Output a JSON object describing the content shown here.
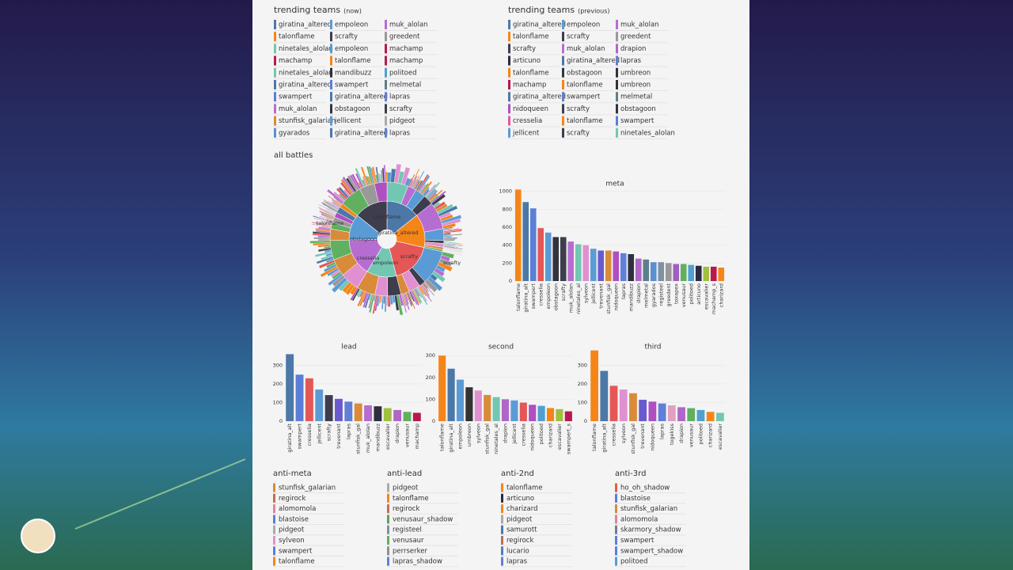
{
  "trending_now": {
    "title": "trending teams",
    "note": "(now)",
    "columns": [
      [
        "giratina_altered",
        "talonflame",
        "ninetales_alolan",
        "machamp",
        "ninetales_alolan",
        "giratina_altered",
        "swampert",
        "muk_alolan",
        "stunfisk_galarian",
        "gyarados"
      ],
      [
        "empoleon",
        "scrafty",
        "empoleon",
        "talonflame",
        "mandibuzz",
        "swampert",
        "giratina_altered",
        "obstagoon",
        "jellicent",
        "giratina_altered"
      ],
      [
        "muk_alolan",
        "greedent",
        "machamp",
        "machamp",
        "politoed",
        "melmetal",
        "lapras",
        "scrafty",
        "pidgeot",
        "lapras"
      ]
    ]
  },
  "trending_previous": {
    "title": "trending teams",
    "note": "(previous)",
    "columns": [
      [
        "giratina_altered",
        "talonflame",
        "scrafty",
        "articuno",
        "talonflame",
        "machamp",
        "giratina_altered",
        "nidoqueen",
        "cresselia",
        "jellicent"
      ],
      [
        "empoleon",
        "scrafty",
        "muk_alolan",
        "giratina_altered",
        "obstagoon",
        "talonflame",
        "swampert",
        "scrafty",
        "talonflame",
        "scrafty"
      ],
      [
        "muk_alolan",
        "greedent",
        "drapion",
        "lapras",
        "umbreon",
        "umbreon",
        "melmetal",
        "obstagoon",
        "swampert",
        "ninetales_alolan"
      ]
    ]
  },
  "colors": {
    "giratina_altered": "#4c78a8",
    "talonflame": "#f58518",
    "ninetales_alolan": "#72c7b2",
    "machamp": "#b8184f",
    "swampert": "#5b7fd6",
    "muk_alolan": "#b66dd1",
    "stunfisk_galarian": "#d98b3a",
    "gyarados": "#5a8fd0",
    "empoleon": "#5b9bd5",
    "scrafty": "#3d3d4d",
    "mandibuzz": "#2f2f3f",
    "obstagoon": "#333340",
    "jellicent": "#5b9bd5",
    "greedent": "#999999",
    "politoed": "#4fa0d0",
    "melmetal": "#607d8b",
    "lapras": "#6080d8",
    "pidgeot": "#aaaaaa",
    "articuno": "#2a2a40",
    "nidoqueen": "#b04fc0",
    "cresselia": "#e45a9a",
    "drapion": "#b066c8",
    "umbreon": "#333333",
    "regirock": "#c07050",
    "alomomola": "#e080a0",
    "blastoise": "#5b7fd6",
    "sylveon": "#e090d0",
    "venusaur_shadow": "#60a060",
    "registeel": "#8090a0",
    "venusaur": "#60b060",
    "perrserker": "#909090",
    "lapras_shadow": "#6080d8",
    "charizard": "#f58518",
    "samurott": "#4c78a8",
    "lucario": "#5080c0",
    "ho_oh_shadow": "#e06040",
    "skarmory_shadow": "#708090",
    "swampert_shadow": "#5b7fd6"
  },
  "all_battles_title": "all battles",
  "sunburst": {
    "inner_labels": [
      "obstagoon",
      "talonflame",
      "giratina_altered",
      "empoleon",
      "scrafty",
      "cresselia"
    ],
    "outer_labels": [
      "talonflame",
      "scrafty"
    ]
  },
  "charts": [
    {
      "type": "bar",
      "title": "meta",
      "categories": [
        "talonflame",
        "giratina_alt",
        "swampert",
        "cresselia",
        "empoleon",
        "obstagoon",
        "scrafty",
        "muk_alolan",
        "ninetales_al",
        "sylveon",
        "jellicent",
        "trevenant",
        "stunfisk_gal",
        "nidoqueen",
        "lapras",
        "mandibuzz",
        "drapion",
        "melmetal",
        "gyarados",
        "registeel",
        "greedent",
        "toxapex",
        "venusaur",
        "politoed",
        "articuno",
        "escavalier",
        "machamp_s",
        "charizard"
      ],
      "values": [
        1020,
        880,
        810,
        590,
        540,
        490,
        490,
        440,
        410,
        400,
        360,
        340,
        340,
        330,
        310,
        300,
        250,
        240,
        210,
        210,
        200,
        190,
        190,
        180,
        170,
        160,
        160,
        150
      ],
      "colors": [
        "#f58518",
        "#4c78a8",
        "#5b7fd6",
        "#e45756",
        "#5b9bd5",
        "#333340",
        "#3d3d4d",
        "#b66dd1",
        "#72c7b2",
        "#e090d0",
        "#5b9bd5",
        "#6a5acd",
        "#d98b3a",
        "#b04fc0",
        "#6080d8",
        "#2f2f3f",
        "#b066c8",
        "#607d8b",
        "#5a8fd0",
        "#8090a0",
        "#999999",
        "#a060c0",
        "#60b060",
        "#4fa0d0",
        "#2a2a40",
        "#a0c040",
        "#b8184f",
        "#f58518"
      ],
      "ylim": [
        0,
        1050
      ],
      "yticks": [
        0,
        200,
        400,
        600,
        800,
        1000
      ]
    },
    {
      "type": "bar",
      "title": "lead",
      "categories": [
        "giratina_alt",
        "swampert",
        "cresselia",
        "jellicent",
        "scrafty",
        "trevenant",
        "lapras",
        "stunfisk_gal",
        "muk_alolan",
        "mandibuzz",
        "escavalier",
        "drapion",
        "venusaur",
        "machamp"
      ],
      "values": [
        360,
        250,
        230,
        170,
        140,
        120,
        105,
        95,
        85,
        80,
        70,
        60,
        50,
        45
      ],
      "colors": [
        "#4c78a8",
        "#5b7fd6",
        "#e45756",
        "#5b9bd5",
        "#3d3d4d",
        "#6a5acd",
        "#6080d8",
        "#d98b3a",
        "#b66dd1",
        "#2f2f3f",
        "#a0c040",
        "#b066c8",
        "#60b060",
        "#b8184f"
      ],
      "ylim": [
        0,
        370
      ],
      "yticks": [
        0,
        100,
        200,
        300
      ]
    },
    {
      "type": "bar",
      "title": "second",
      "categories": [
        "talonflame",
        "giratina_alt",
        "empoleon",
        "umbreon",
        "sylveon",
        "stunfisk_gal",
        "ninetales_al",
        "drapion",
        "jellicent",
        "cresselia",
        "nidoqueen",
        "politoed",
        "charizard",
        "escavalier",
        "swampert_s"
      ],
      "values": [
        300,
        240,
        190,
        155,
        140,
        120,
        110,
        100,
        95,
        85,
        75,
        70,
        60,
        55,
        45
      ],
      "colors": [
        "#f58518",
        "#4c78a8",
        "#5b9bd5",
        "#333333",
        "#e090d0",
        "#d98b3a",
        "#72c7b2",
        "#b066c8",
        "#5b9bd5",
        "#e45756",
        "#b04fc0",
        "#4fa0d0",
        "#f58518",
        "#a0c040",
        "#b8184f"
      ],
      "ylim": [
        0,
        315
      ],
      "yticks": [
        0,
        100,
        200,
        300
      ]
    },
    {
      "type": "bar",
      "title": "third",
      "categories": [
        "talonflame",
        "giratina_alt",
        "cresselia",
        "sylveon",
        "stunfisk_gal",
        "trevenant",
        "nidoqueen",
        "lapras",
        "togekiss",
        "drapion",
        "venusaur",
        "politoed",
        "charizard",
        "escavalier"
      ],
      "values": [
        380,
        270,
        190,
        170,
        150,
        115,
        105,
        95,
        85,
        75,
        70,
        60,
        50,
        45
      ],
      "colors": [
        "#f58518",
        "#4c78a8",
        "#e45756",
        "#e090d0",
        "#d98b3a",
        "#6a5acd",
        "#b04fc0",
        "#6080d8",
        "#e0a0c0",
        "#b066c8",
        "#60b060",
        "#4fa0d0",
        "#f58518",
        "#72c7b2"
      ],
      "ylim": [
        0,
        370
      ],
      "yticks": [
        0,
        100,
        200,
        300
      ]
    }
  ],
  "anti": [
    {
      "title": "anti-meta",
      "items": [
        "stunfisk_galarian",
        "regirock",
        "alomomola",
        "blastoise",
        "pidgeot",
        "sylveon",
        "swampert",
        "talonflame"
      ]
    },
    {
      "title": "anti-lead",
      "items": [
        "pidgeot",
        "talonflame",
        "regirock",
        "venusaur_shadow",
        "registeel",
        "venusaur",
        "perrserker",
        "lapras_shadow"
      ]
    },
    {
      "title": "anti-2nd",
      "items": [
        "talonflame",
        "articuno",
        "charizard",
        "pidgeot",
        "samurott",
        "regirock",
        "lucario",
        "lapras"
      ]
    },
    {
      "title": "anti-3rd",
      "items": [
        "ho_oh_shadow",
        "blastoise",
        "stunfisk_galarian",
        "alomomola",
        "skarmory_shadow",
        "swampert",
        "swampert_shadow",
        "politoed"
      ]
    }
  ]
}
